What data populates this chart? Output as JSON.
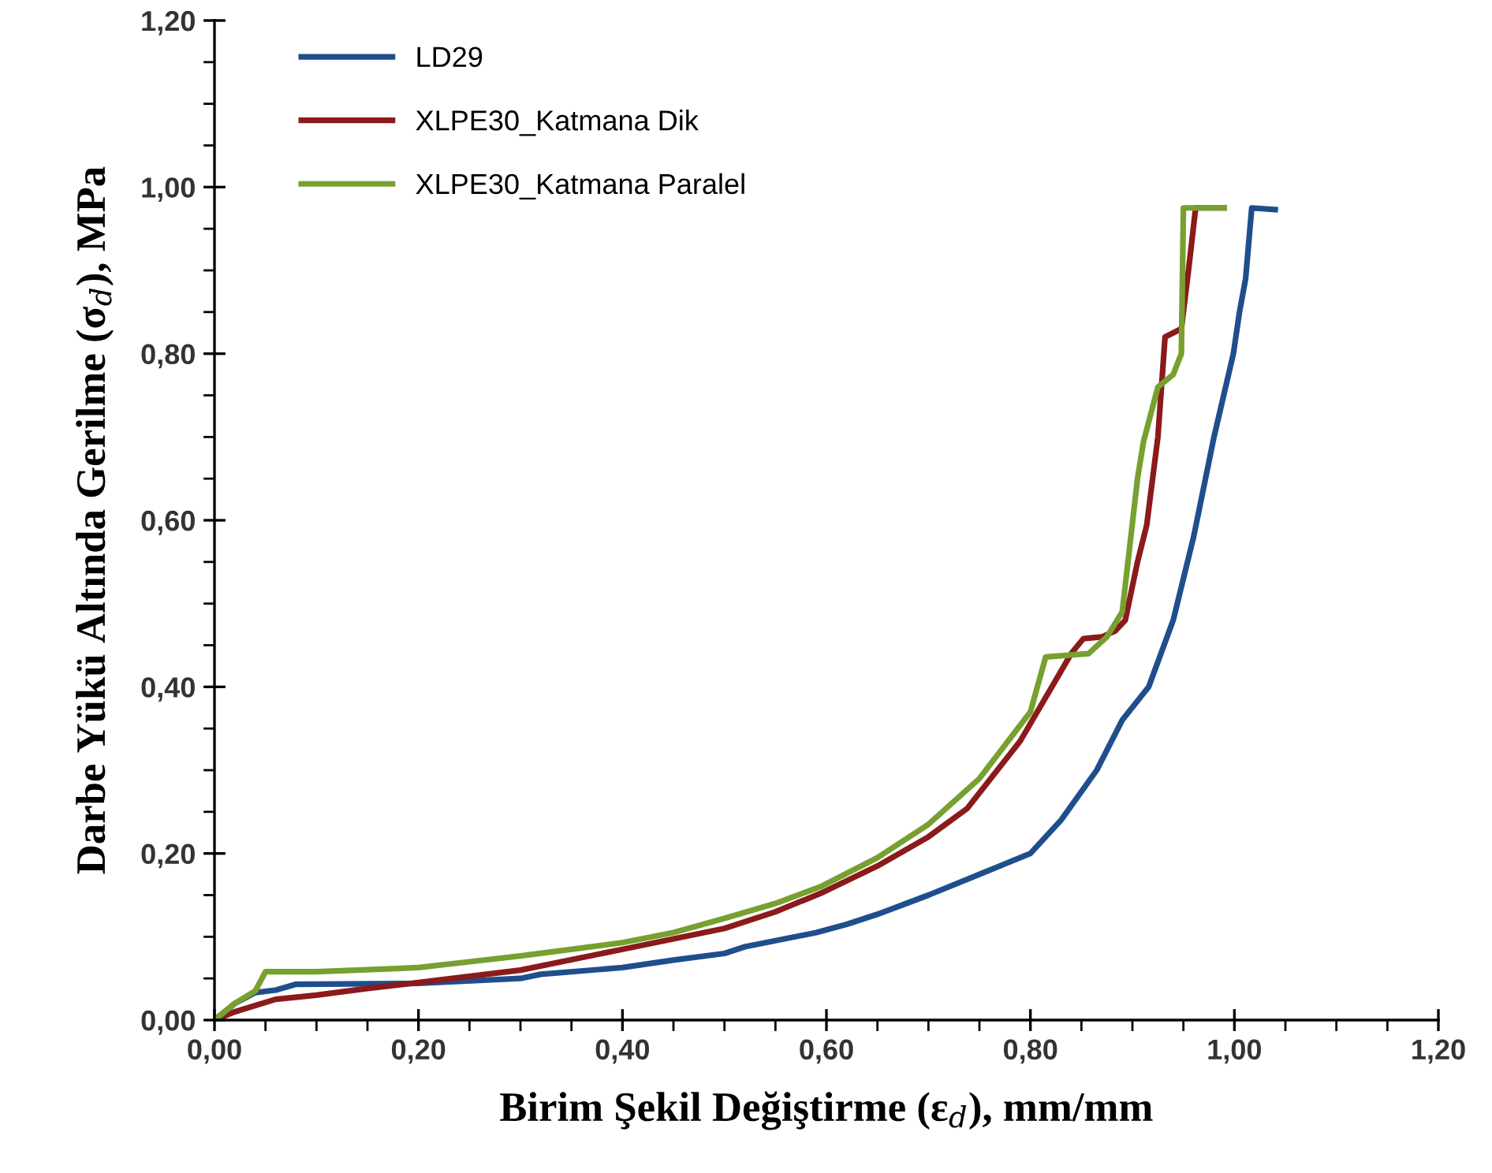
{
  "chart_data": {
    "type": "line",
    "xlabel": "Birim Şekil Değiştirme (ε$_{d}$), mm/mm",
    "ylabel": "Darbe Yükü Altında Gerilme (σ$_{d}$), MPa",
    "xlim": [
      0,
      1.2
    ],
    "ylim": [
      0,
      1.2
    ],
    "xticks": [
      {
        "value": 0,
        "label": "0,00"
      },
      {
        "value": 0.2,
        "label": "0,20"
      },
      {
        "value": 0.4,
        "label": "0,40"
      },
      {
        "value": 0.6,
        "label": "0,60"
      },
      {
        "value": 0.8,
        "label": "0,80"
      },
      {
        "value": 1.0,
        "label": "1,00"
      },
      {
        "value": 1.2,
        "label": "1,20"
      }
    ],
    "yticks": [
      {
        "value": 0,
        "label": "0,00"
      },
      {
        "value": 0.2,
        "label": "0,20"
      },
      {
        "value": 0.4,
        "label": "0,40"
      },
      {
        "value": 0.6,
        "label": "0,60"
      },
      {
        "value": 0.8,
        "label": "0,80"
      },
      {
        "value": 1.0,
        "label": "1,00"
      },
      {
        "value": 1.2,
        "label": "1,20"
      }
    ],
    "grid": false,
    "legend": "top left",
    "marker": "none",
    "line_style": "solid",
    "series": [
      {
        "name": "LD29",
        "color": "#1f4e8c",
        "x": [
          0,
          0.02,
          0.04,
          0.06,
          0.08,
          0.2,
          0.3,
          0.32,
          0.4,
          0.45,
          0.5,
          0.52,
          0.59,
          0.62,
          0.65,
          0.7,
          0.75,
          0.8,
          0.83,
          0.865,
          0.89,
          0.916,
          0.94,
          0.96,
          0.98,
          0.999,
          1.005,
          1.011,
          1.017,
          1.04
        ],
        "values": [
          0,
          0.02,
          0.033,
          0.036,
          0.043,
          0.044,
          0.05,
          0.055,
          0.063,
          0.072,
          0.08,
          0.088,
          0.105,
          0.115,
          0.127,
          0.15,
          0.175,
          0.2,
          0.24,
          0.3,
          0.36,
          0.4,
          0.48,
          0.58,
          0.7,
          0.8,
          0.85,
          0.89,
          0.975,
          0.973
        ]
      },
      {
        "name": "XLPE30_Katmana Dik",
        "color": "#8b1a1a",
        "x": [
          0,
          0.02,
          0.06,
          0.1,
          0.15,
          0.2,
          0.3,
          0.4,
          0.5,
          0.55,
          0.594,
          0.65,
          0.7,
          0.738,
          0.79,
          0.821,
          0.84,
          0.852,
          0.87,
          0.883,
          0.893,
          0.905,
          0.914,
          0.925,
          0.932,
          0.948,
          0.955,
          0.962,
          0.99
        ],
        "values": [
          0,
          0.01,
          0.025,
          0.03,
          0.038,
          0.045,
          0.06,
          0.085,
          0.11,
          0.13,
          0.152,
          0.185,
          0.22,
          0.254,
          0.335,
          0.4,
          0.44,
          0.458,
          0.46,
          0.467,
          0.48,
          0.55,
          0.594,
          0.7,
          0.82,
          0.83,
          0.9,
          0.975,
          0.975
        ]
      },
      {
        "name": "XLPE30_Katmana Paralel",
        "color": "#77a030",
        "x": [
          0,
          0.02,
          0.04,
          0.05,
          0.1,
          0.2,
          0.25,
          0.3,
          0.4,
          0.45,
          0.5,
          0.55,
          0.594,
          0.65,
          0.7,
          0.75,
          0.8,
          0.815,
          0.857,
          0.875,
          0.89,
          0.895,
          0.905,
          0.911,
          0.925,
          0.94,
          0.948,
          0.95,
          0.99
        ],
        "values": [
          0,
          0.02,
          0.035,
          0.058,
          0.058,
          0.063,
          0.07,
          0.077,
          0.093,
          0.105,
          0.122,
          0.14,
          0.16,
          0.195,
          0.235,
          0.29,
          0.37,
          0.436,
          0.44,
          0.46,
          0.49,
          0.543,
          0.65,
          0.695,
          0.76,
          0.775,
          0.8,
          0.975,
          0.975
        ]
      }
    ]
  }
}
